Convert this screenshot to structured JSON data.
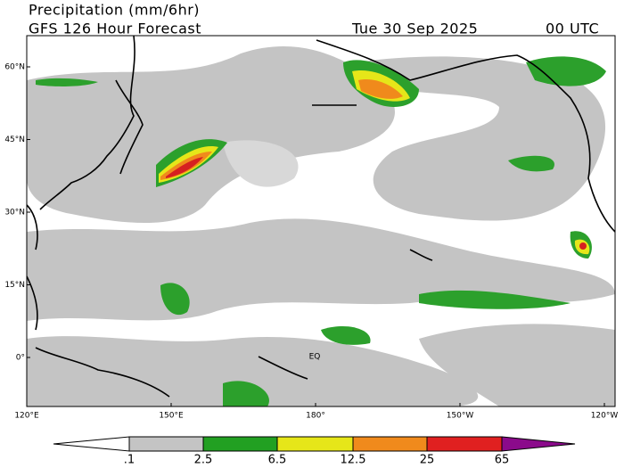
{
  "header": {
    "title": "Precipitation (mm/6hr)",
    "subtitle": "GFS 126 Hour Forecast",
    "date": "Tue 30 Sep 2025",
    "time": "00 UTC"
  },
  "map": {
    "lat_labels": [
      "60°N",
      "45°N",
      "30°N",
      "15°N",
      "0°"
    ],
    "lon_labels": [
      "120°E",
      "150°E",
      "180°",
      "150°W",
      "120°W"
    ],
    "equator_label": "EQ"
  },
  "colorbar": {
    "labels": [
      ".1",
      "2.5",
      "6.5",
      "12.5",
      "25",
      "65"
    ]
  }
}
